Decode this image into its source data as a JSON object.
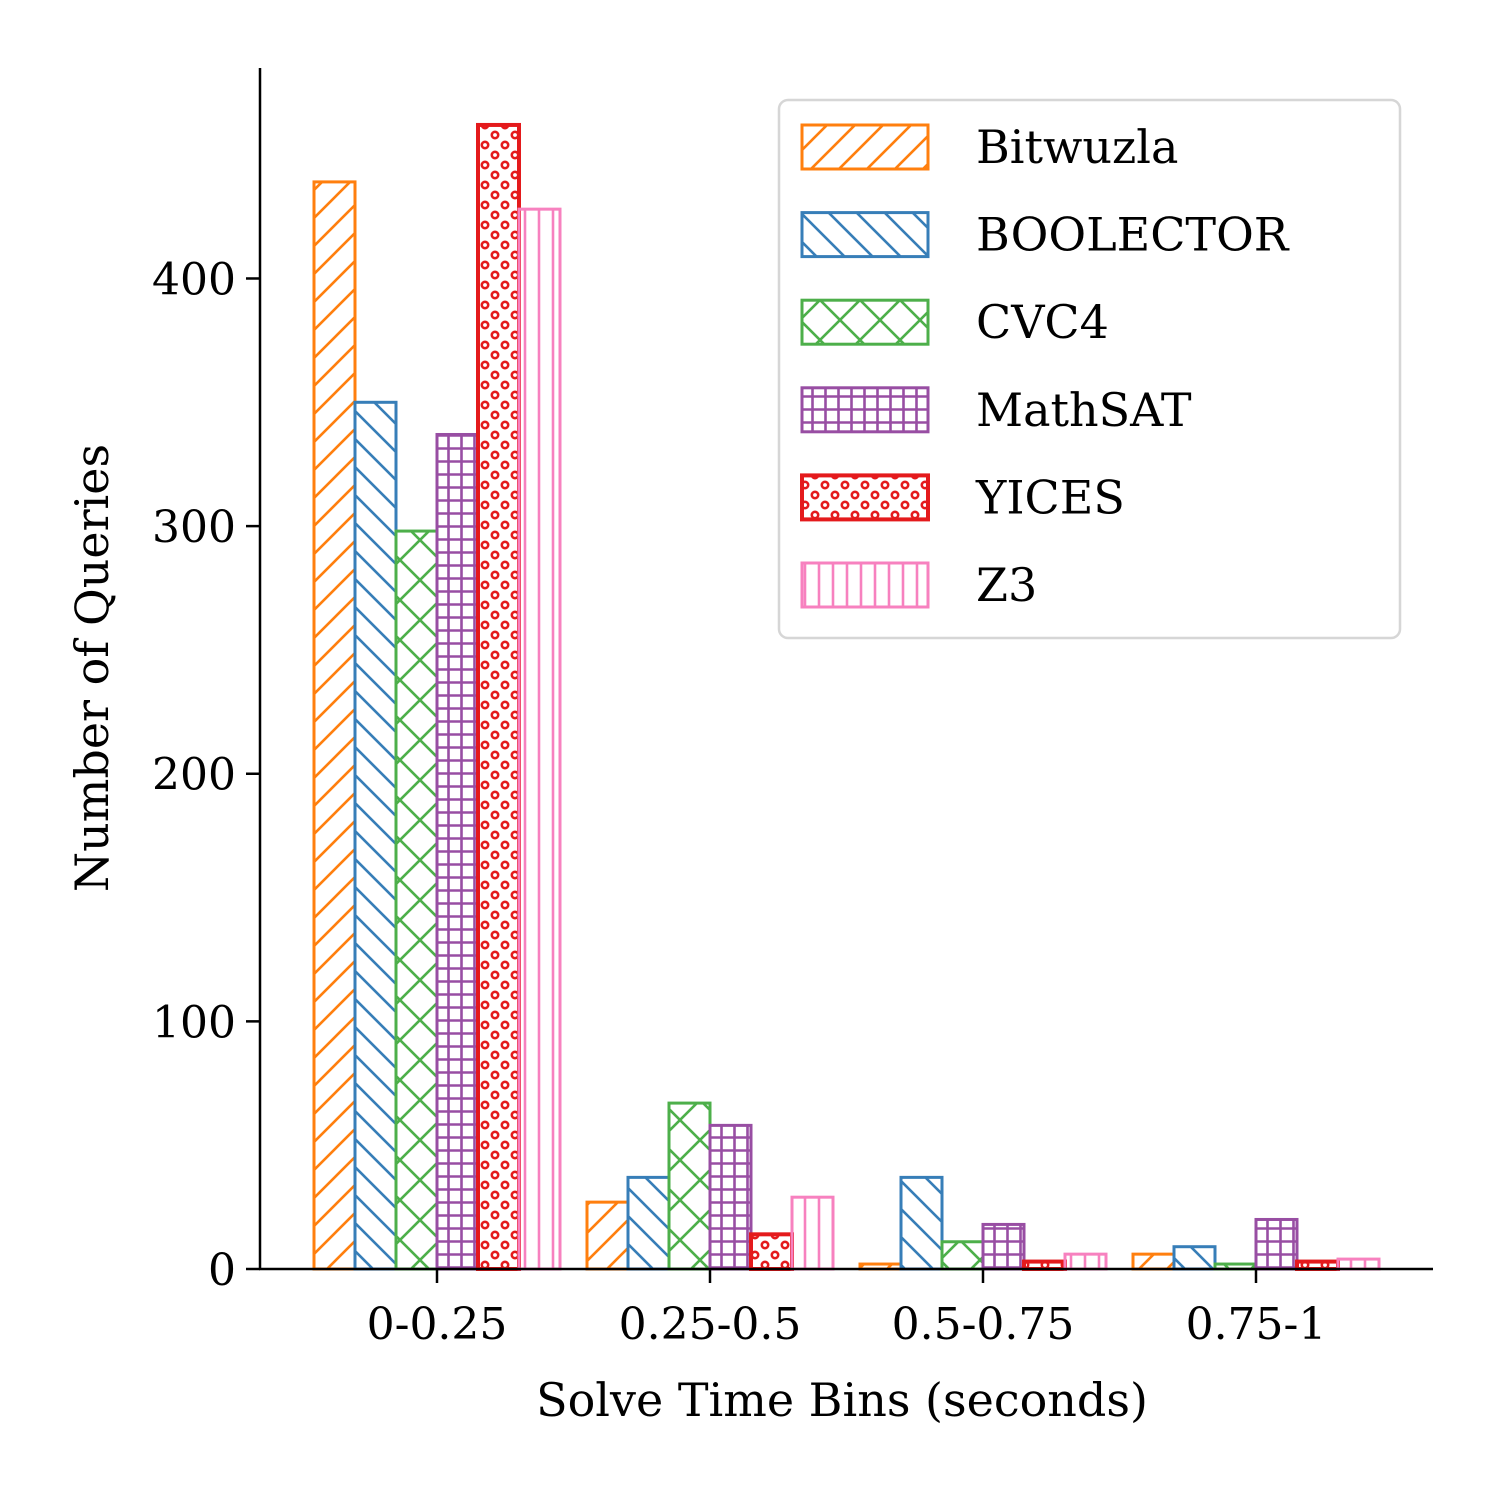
{
  "chart_data": {
    "type": "bar",
    "title": "",
    "xlabel": "Solve Time Bins (seconds)",
    "ylabel": "Number of Queries",
    "categories": [
      "0-0.25",
      "0.25-0.5",
      "0.5-0.75",
      "0.75-1"
    ],
    "ylim": [
      0,
      485
    ],
    "yticks": [
      0,
      100,
      200,
      300,
      400
    ],
    "grid": false,
    "legend_position": "top-right",
    "series": [
      {
        "name": "Bitwuzla",
        "color": "#ff7f0e",
        "hatch": "forward-diagonal",
        "values": [
          439,
          27,
          2,
          6
        ]
      },
      {
        "name": "BOOLECTOR",
        "color": "#377eb8",
        "hatch": "back-diagonal",
        "values": [
          350,
          37,
          37,
          9
        ]
      },
      {
        "name": "CVC4",
        "color": "#4daf4a",
        "hatch": "cross-diagonal",
        "values": [
          298,
          67,
          11,
          2
        ]
      },
      {
        "name": "MathSAT",
        "color": "#984ea3",
        "hatch": "grid",
        "values": [
          337,
          58,
          18,
          20
        ]
      },
      {
        "name": "YICES",
        "color": "#e41a1c",
        "hatch": "dots",
        "values": [
          462,
          14,
          3,
          3
        ]
      },
      {
        "name": "Z3",
        "color": "#f781bf",
        "hatch": "vertical",
        "values": [
          428,
          29,
          6,
          4
        ]
      }
    ]
  }
}
